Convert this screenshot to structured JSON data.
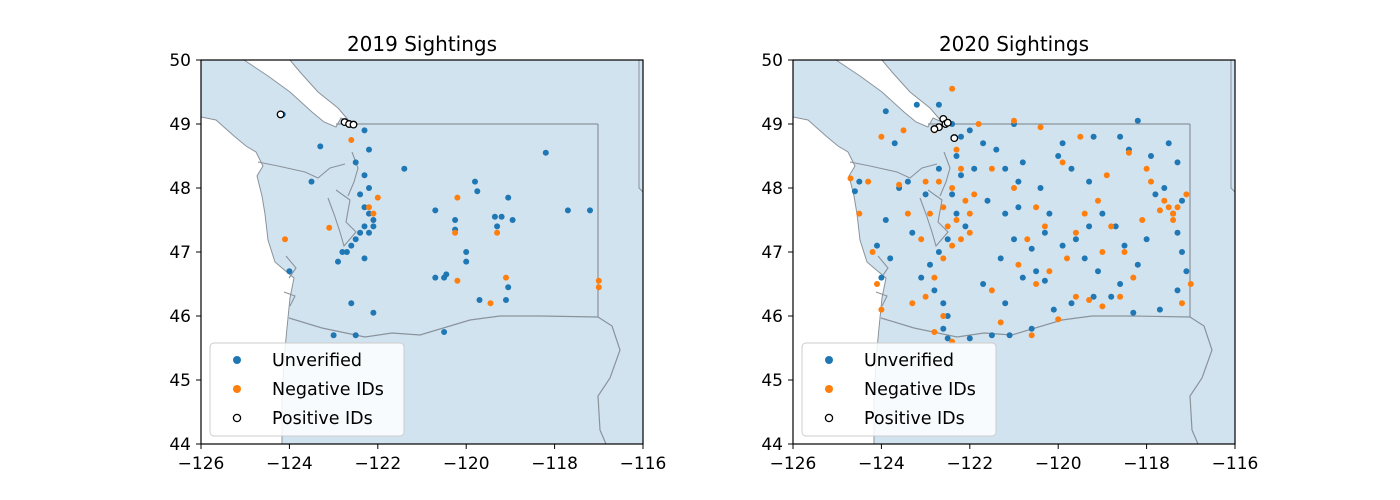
{
  "colors": {
    "unverified": "#1f77b4",
    "negative": "#ff7f0e",
    "positive_edge": "#000000",
    "water": "#d2e3f0",
    "land_outline": "#8a939b"
  },
  "chart_data": [
    {
      "type": "scatter",
      "title": "2019 Sightings",
      "xlim": [
        -126,
        -116
      ],
      "ylim": [
        44,
        50
      ],
      "xticks": [
        -126,
        -124,
        -122,
        -120,
        -118,
        -116
      ],
      "xtick_labels": [
        "−126",
        "−124",
        "−122",
        "−120",
        "−118",
        "−116"
      ],
      "yticks": [
        44,
        45,
        46,
        47,
        48,
        49,
        50
      ],
      "ytick_labels": [
        "44",
        "45",
        "46",
        "47",
        "48",
        "49",
        "50"
      ],
      "legend_position": "lower-left",
      "series": [
        {
          "name": "Unverified",
          "style": "filled",
          "color": "#1f77b4",
          "points": [
            [
              -122.3,
              48.9
            ],
            [
              -122.2,
              48.6
            ],
            [
              -122.5,
              48.4
            ],
            [
              -122.3,
              48.2
            ],
            [
              -122.2,
              48.0
            ],
            [
              -122.4,
              47.9
            ],
            [
              -122.3,
              47.7
            ],
            [
              -122.2,
              47.6
            ],
            [
              -122.1,
              47.5
            ],
            [
              -122.3,
              47.4
            ],
            [
              -122.4,
              47.3
            ],
            [
              -122.5,
              47.2
            ],
            [
              -122.6,
              47.1
            ],
            [
              -122.7,
              47.0
            ],
            [
              -122.2,
              47.3
            ],
            [
              -122.1,
              47.4
            ],
            [
              -123.3,
              48.65
            ],
            [
              -123.5,
              48.1
            ],
            [
              -122.8,
              47.0
            ],
            [
              -122.9,
              46.85
            ],
            [
              -122.3,
              46.9
            ],
            [
              -121.4,
              48.3
            ],
            [
              -122.6,
              46.2
            ],
            [
              -122.1,
              46.05
            ],
            [
              -122.5,
              45.7
            ],
            [
              -123.0,
              45.7
            ],
            [
              -124.0,
              46.7
            ],
            [
              -120.5,
              45.75
            ],
            [
              -120.7,
              47.65
            ],
            [
              -120.25,
              47.5
            ],
            [
              -120.25,
              47.35
            ],
            [
              -119.8,
              48.1
            ],
            [
              -119.75,
              47.95
            ],
            [
              -119.35,
              47.55
            ],
            [
              -119.2,
              47.55
            ],
            [
              -119.05,
              47.85
            ],
            [
              -118.95,
              47.5
            ],
            [
              -119.3,
              47.4
            ],
            [
              -120.0,
              47.0
            ],
            [
              -120.0,
              46.85
            ],
            [
              -120.7,
              46.6
            ],
            [
              -120.5,
              46.6
            ],
            [
              -120.45,
              46.65
            ],
            [
              -119.7,
              46.25
            ],
            [
              -119.1,
              46.25
            ],
            [
              -119.05,
              46.45
            ],
            [
              -118.2,
              48.55
            ],
            [
              -117.7,
              47.65
            ],
            [
              -117.2,
              47.65
            ],
            [
              -124.15,
              49.15
            ]
          ]
        },
        {
          "name": "Negative IDs",
          "style": "filled",
          "color": "#ff7f0e",
          "points": [
            [
              -122.6,
              48.75
            ],
            [
              -122.1,
              47.6
            ],
            [
              -122.2,
              47.7
            ],
            [
              -122.0,
              47.85
            ],
            [
              -124.1,
              47.2
            ],
            [
              -123.1,
              47.38
            ],
            [
              -120.2,
              47.85
            ],
            [
              -120.25,
              47.3
            ],
            [
              -119.3,
              47.3
            ],
            [
              -120.2,
              46.55
            ],
            [
              -119.1,
              46.6
            ],
            [
              -119.45,
              46.2
            ],
            [
              -117.0,
              46.55
            ],
            [
              -117.0,
              46.45
            ]
          ]
        },
        {
          "name": "Positive IDs",
          "style": "hollow",
          "color": "#000000",
          "points": [
            [
              -124.2,
              49.15
            ],
            [
              -122.75,
              49.03
            ],
            [
              -122.65,
              49.0
            ],
            [
              -122.55,
              48.99
            ]
          ]
        }
      ]
    },
    {
      "type": "scatter",
      "title": "2020 Sightings",
      "xlim": [
        -126,
        -116
      ],
      "ylim": [
        44,
        50
      ],
      "xticks": [
        -126,
        -124,
        -122,
        -120,
        -118,
        -116
      ],
      "xtick_labels": [
        "−126",
        "−124",
        "−122",
        "−120",
        "−118",
        "−116"
      ],
      "yticks": [
        44,
        45,
        46,
        47,
        48,
        49,
        50
      ],
      "ytick_labels": [
        "44",
        "45",
        "46",
        "47",
        "48",
        "49",
        "50"
      ],
      "legend_position": "lower-left",
      "series": [
        {
          "name": "Unverified",
          "style": "filled",
          "color": "#1f77b4",
          "points": [
            [
              -122.4,
              49.0
            ],
            [
              -122.2,
              48.8
            ],
            [
              -122.3,
              48.5
            ],
            [
              -122.2,
              48.2
            ],
            [
              -122.4,
              47.9
            ],
            [
              -122.3,
              47.6
            ],
            [
              -122.1,
              47.4
            ],
            [
              -122.5,
              47.2
            ],
            [
              -122.7,
              47.0
            ],
            [
              -122.9,
              46.8
            ],
            [
              -123.1,
              46.6
            ],
            [
              -122.8,
              46.4
            ],
            [
              -122.6,
              46.2
            ],
            [
              -122.5,
              46.0
            ],
            [
              -122.6,
              45.8
            ],
            [
              -122.5,
              45.65
            ],
            [
              -123.8,
              46.9
            ],
            [
              -124.0,
              46.6
            ],
            [
              -124.1,
              47.1
            ],
            [
              -123.9,
              47.5
            ],
            [
              -123.4,
              48.1
            ],
            [
              -123.6,
              48.0
            ],
            [
              -124.5,
              48.1
            ],
            [
              -124.6,
              47.95
            ],
            [
              -123.7,
              48.7
            ],
            [
              -123.9,
              49.2
            ],
            [
              -123.2,
              49.3
            ],
            [
              -122.7,
              49.3
            ],
            [
              -122.0,
              48.9
            ],
            [
              -121.7,
              48.7
            ],
            [
              -121.4,
              48.6
            ],
            [
              -121.2,
              48.3
            ],
            [
              -120.9,
              48.1
            ],
            [
              -120.4,
              48.0
            ],
            [
              -120.0,
              48.5
            ],
            [
              -119.7,
              48.3
            ],
            [
              -119.3,
              48.1
            ],
            [
              -119.2,
              48.8
            ],
            [
              -118.6,
              48.8
            ],
            [
              -118.2,
              49.05
            ],
            [
              -118.4,
              48.6
            ],
            [
              -117.9,
              48.5
            ],
            [
              -117.5,
              48.7
            ],
            [
              -117.3,
              48.4
            ],
            [
              -117.6,
              48.0
            ],
            [
              -117.2,
              47.8
            ],
            [
              -117.4,
              47.6
            ],
            [
              -117.3,
              47.3
            ],
            [
              -117.2,
              47.0
            ],
            [
              -117.1,
              46.7
            ],
            [
              -117.3,
              46.4
            ],
            [
              -117.7,
              46.1
            ],
            [
              -118.3,
              46.05
            ],
            [
              -118.8,
              46.3
            ],
            [
              -119.2,
              46.3
            ],
            [
              -119.7,
              46.2
            ],
            [
              -120.1,
              46.1
            ],
            [
              -120.6,
              45.8
            ],
            [
              -121.1,
              45.7
            ],
            [
              -121.5,
              45.7
            ],
            [
              -122.0,
              45.65
            ],
            [
              -120.8,
              46.6
            ],
            [
              -120.5,
              46.7
            ],
            [
              -120.3,
              46.55
            ],
            [
              -120.6,
              47.05
            ],
            [
              -120.3,
              47.3
            ],
            [
              -120.2,
              47.6
            ],
            [
              -119.9,
              47.1
            ],
            [
              -119.6,
              47.2
            ],
            [
              -119.3,
              47.4
            ],
            [
              -119.0,
              47.6
            ],
            [
              -118.7,
              47.4
            ],
            [
              -118.5,
              47.1
            ],
            [
              -118.2,
              46.8
            ],
            [
              -118.6,
              46.5
            ],
            [
              -119.1,
              46.7
            ],
            [
              -119.4,
              46.9
            ],
            [
              -121.0,
              47.2
            ],
            [
              -121.3,
              46.9
            ],
            [
              -121.7,
              46.5
            ],
            [
              -121.2,
              46.2
            ],
            [
              -121.6,
              47.8
            ],
            [
              -121.2,
              47.6
            ],
            [
              -120.8,
              48.4
            ],
            [
              -119.9,
              48.7
            ],
            [
              -121.0,
              49.0
            ],
            [
              -117.8,
              47.9
            ],
            [
              -118.0,
              47.2
            ],
            [
              -120.9,
              47.7
            ],
            [
              -121.9,
              48.3
            ],
            [
              -122.7,
              48.3
            ],
            [
              -123.0,
              47.9
            ],
            [
              -123.3,
              47.3
            ]
          ]
        },
        {
          "name": "Negative IDs",
          "style": "filled",
          "color": "#ff7f0e",
          "points": [
            [
              -122.4,
              49.55
            ],
            [
              -122.8,
              48.9
            ],
            [
              -122.3,
              48.6
            ],
            [
              -122.2,
              48.3
            ],
            [
              -122.4,
              48.0
            ],
            [
              -122.1,
              47.8
            ],
            [
              -122.3,
              47.5
            ],
            [
              -122.0,
              47.3
            ],
            [
              -122.4,
              47.1
            ],
            [
              -122.6,
              46.9
            ],
            [
              -122.8,
              46.6
            ],
            [
              -123.0,
              46.3
            ],
            [
              -122.6,
              46.0
            ],
            [
              -122.8,
              45.75
            ],
            [
              -122.4,
              45.6
            ],
            [
              -121.9,
              47.9
            ],
            [
              -122.0,
              47.6
            ],
            [
              -122.2,
              47.2
            ],
            [
              -122.5,
              47.4
            ],
            [
              -122.6,
              47.7
            ],
            [
              -122.7,
              48.1
            ],
            [
              -123.0,
              48.1
            ],
            [
              -123.6,
              48.05
            ],
            [
              -124.3,
              48.1
            ],
            [
              -124.5,
              47.6
            ],
            [
              -124.2,
              47.0
            ],
            [
              -124.1,
              46.5
            ],
            [
              -124.0,
              46.1
            ],
            [
              -123.3,
              46.2
            ],
            [
              -123.1,
              47.2
            ],
            [
              -123.4,
              47.6
            ],
            [
              -121.5,
              48.3
            ],
            [
              -121.0,
              48.0
            ],
            [
              -120.5,
              47.7
            ],
            [
              -120.3,
              47.4
            ],
            [
              -120.7,
              47.2
            ],
            [
              -120.9,
              46.8
            ],
            [
              -120.5,
              46.5
            ],
            [
              -120.2,
              46.7
            ],
            [
              -119.8,
              46.9
            ],
            [
              -119.6,
              47.3
            ],
            [
              -119.4,
              47.6
            ],
            [
              -119.1,
              47.8
            ],
            [
              -118.8,
              47.4
            ],
            [
              -118.5,
              47.0
            ],
            [
              -118.3,
              46.6
            ],
            [
              -118.6,
              46.3
            ],
            [
              -119.0,
              46.15
            ],
            [
              -119.3,
              46.25
            ],
            [
              -119.6,
              46.3
            ],
            [
              -117.4,
              47.6
            ],
            [
              -117.5,
              47.7
            ],
            [
              -117.6,
              47.8
            ],
            [
              -117.3,
              47.7
            ],
            [
              -117.7,
              47.65
            ],
            [
              -117.4,
              47.5
            ],
            [
              -117.1,
              47.9
            ],
            [
              -117.0,
              46.5
            ],
            [
              -117.2,
              46.2
            ],
            [
              -118.0,
              48.3
            ],
            [
              -118.4,
              48.55
            ],
            [
              -119.5,
              48.8
            ],
            [
              -120.4,
              48.95
            ],
            [
              -121.8,
              49.0
            ],
            [
              -123.5,
              48.9
            ],
            [
              -124.0,
              48.8
            ],
            [
              -121.0,
              49.05
            ],
            [
              -120.0,
              45.95
            ],
            [
              -119.0,
              47.0
            ],
            [
              -118.1,
              47.5
            ],
            [
              -121.5,
              46.4
            ],
            [
              -121.3,
              45.9
            ],
            [
              -124.7,
              48.15
            ],
            [
              -120.6,
              45.7
            ],
            [
              -122.9,
              47.6
            ],
            [
              -119.9,
              48.4
            ],
            [
              -118.9,
              48.2
            ],
            [
              -117.9,
              48.1
            ]
          ]
        },
        {
          "name": "Positive IDs",
          "style": "hollow",
          "color": "#000000",
          "points": [
            [
              -122.6,
              49.08
            ],
            [
              -122.55,
              49.0
            ],
            [
              -122.7,
              48.95
            ],
            [
              -122.8,
              48.92
            ],
            [
              -122.5,
              49.02
            ],
            [
              -122.35,
              48.78
            ]
          ]
        }
      ]
    }
  ]
}
